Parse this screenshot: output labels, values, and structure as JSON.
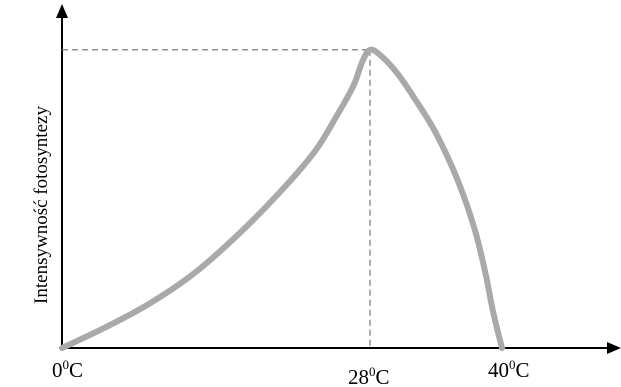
{
  "chart_data": {
    "type": "line",
    "title": "",
    "xlabel": "",
    "ylabel": "Intensywność fotosyntezy",
    "xlim": [
      0,
      50
    ],
    "ylim": [
      0,
      1.12
    ],
    "x_ticks": [
      {
        "value": 0,
        "base": "0",
        "sup": "0",
        "unit": "C"
      },
      {
        "value": 28,
        "base": "28",
        "sup": "0",
        "unit": "C"
      },
      {
        "value": 40,
        "base": "40",
        "sup": "0",
        "unit": "C"
      }
    ],
    "peak": {
      "x": 28,
      "y": 1.0
    },
    "grid": false,
    "series": [
      {
        "line_color": "#a9a9a9",
        "x": [
          0,
          4,
          8,
          12,
          16,
          20,
          23,
          25,
          26.5,
          27.3,
          28,
          29,
          30.5,
          32,
          34,
          36,
          37.5,
          38.5,
          39.2,
          40
        ],
        "y": [
          0,
          0.07,
          0.15,
          0.25,
          0.38,
          0.53,
          0.66,
          0.78,
          0.88,
          0.96,
          1.0,
          0.98,
          0.92,
          0.84,
          0.72,
          0.56,
          0.4,
          0.25,
          0.12,
          0
        ]
      }
    ]
  }
}
